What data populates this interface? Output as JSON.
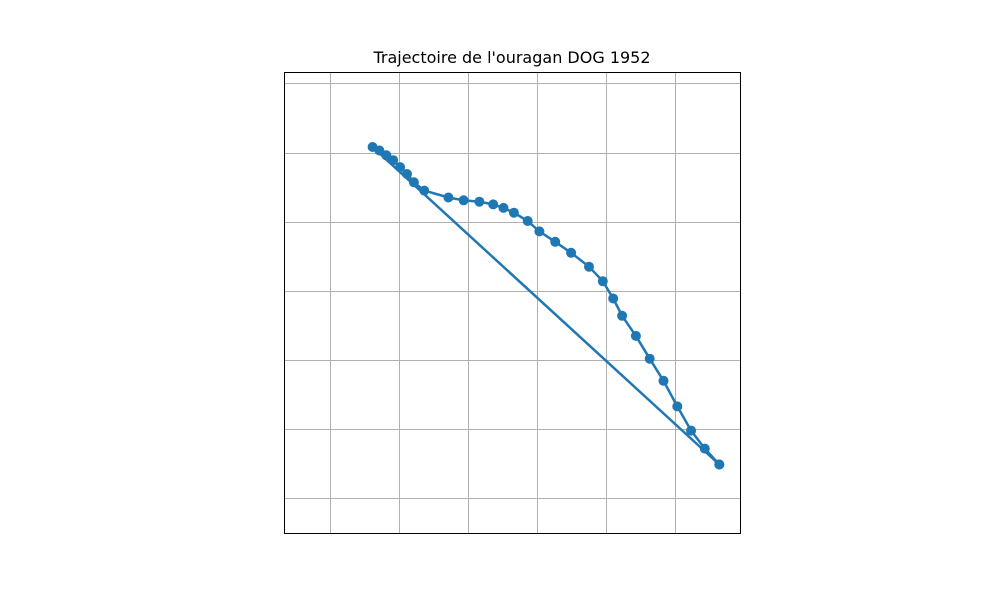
{
  "chart_data": {
    "type": "line",
    "title": "Trajectoire de l'ouragan DOG 1952",
    "xlabel": "",
    "ylabel": "",
    "xlim": [
      -0.65,
      5.95
    ],
    "ylim": [
      -0.5,
      6.15
    ],
    "grid": true,
    "color": "#1f77b4",
    "series": [
      {
        "marker": "circle",
        "points": [
          {
            "x": 5.65,
            "y": 0.49
          },
          {
            "x": 5.44,
            "y": 0.72
          },
          {
            "x": 5.24,
            "y": 0.98
          },
          {
            "x": 5.04,
            "y": 1.33
          },
          {
            "x": 4.84,
            "y": 1.7
          },
          {
            "x": 4.64,
            "y": 2.02
          },
          {
            "x": 4.44,
            "y": 2.35
          },
          {
            "x": 4.24,
            "y": 2.64
          },
          {
            "x": 4.11,
            "y": 2.89
          },
          {
            "x": 3.96,
            "y": 3.14
          },
          {
            "x": 3.76,
            "y": 3.35
          },
          {
            "x": 3.5,
            "y": 3.55
          },
          {
            "x": 3.27,
            "y": 3.71
          },
          {
            "x": 3.04,
            "y": 3.86
          },
          {
            "x": 2.87,
            "y": 4.01
          },
          {
            "x": 2.67,
            "y": 4.13
          },
          {
            "x": 2.52,
            "y": 4.2
          },
          {
            "x": 2.37,
            "y": 4.25
          },
          {
            "x": 2.17,
            "y": 4.29
          },
          {
            "x": 1.94,
            "y": 4.31
          },
          {
            "x": 1.72,
            "y": 4.35
          },
          {
            "x": 1.37,
            "y": 4.45
          },
          {
            "x": 1.22,
            "y": 4.57
          },
          {
            "x": 1.12,
            "y": 4.69
          },
          {
            "x": 1.02,
            "y": 4.79
          },
          {
            "x": 0.92,
            "y": 4.89
          },
          {
            "x": 0.82,
            "y": 4.96
          },
          {
            "x": 0.72,
            "y": 5.03
          },
          {
            "x": 0.62,
            "y": 5.08
          },
          {
            "x": 5.65,
            "y": 0.49
          }
        ]
      }
    ]
  }
}
